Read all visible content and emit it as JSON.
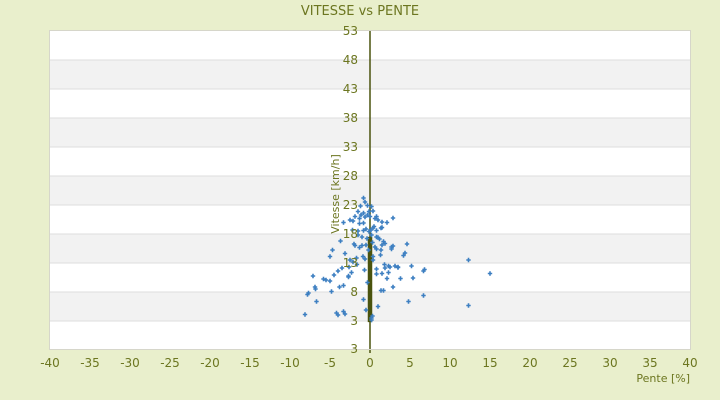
{
  "chart_data": {
    "type": "scatter",
    "title": "VITESSE vs PENTE",
    "xlabel": "Pente [%]",
    "ylabel": "Vitesse [km/h]",
    "xlim": [
      -40,
      40
    ],
    "x_ticks": [
      -40,
      -35,
      -30,
      -25,
      -20,
      -15,
      -10,
      -5,
      0,
      5,
      10,
      15,
      20,
      25,
      30,
      35,
      40
    ],
    "y_ticks": [
      53,
      48,
      43,
      38,
      33,
      28,
      23,
      18,
      13,
      8,
      3
    ],
    "y_bottom_edge_label": "3",
    "grid": "horizontal-alternating-bands",
    "legend": "none",
    "zero_axis_line": {
      "x": 0,
      "color": "#4a530e",
      "dense_overlap_vitesse_range": [
        2.8,
        17.5
      ]
    },
    "series": [
      {
        "name": "vitesse-vs-pente",
        "marker": "plus",
        "color": "#3d7fc1",
        "points": [
          [
            -0.8,
            24.2
          ],
          [
            -0.6,
            23.5
          ],
          [
            -1.2,
            22.8
          ],
          [
            -0.3,
            22.9
          ],
          [
            0.2,
            22.7
          ],
          [
            -1.5,
            21.9
          ],
          [
            -0.8,
            21.6
          ],
          [
            -0.1,
            21.9
          ],
          [
            0.4,
            22.0
          ],
          [
            -1.9,
            21.0
          ],
          [
            -2.5,
            20.4
          ],
          [
            -3.3,
            20.0
          ],
          [
            -1.3,
            20.7
          ],
          [
            -0.6,
            20.9
          ],
          [
            0.0,
            21.0
          ],
          [
            0.6,
            20.7
          ],
          [
            1.0,
            20.4
          ],
          [
            1.5,
            20.1
          ],
          [
            2.9,
            20.8
          ],
          [
            2.1,
            20.0
          ],
          [
            -1.1,
            21.3
          ],
          [
            -0.3,
            21.3
          ],
          [
            0.8,
            21.0
          ],
          [
            -2.1,
            20.2
          ],
          [
            0.4,
            19.0
          ],
          [
            1.5,
            19.1
          ],
          [
            -0.8,
            19.9
          ],
          [
            0.5,
            19.3
          ],
          [
            -1.3,
            19.8
          ],
          [
            -2.2,
            18.7
          ],
          [
            -1.5,
            18.5
          ],
          [
            -0.8,
            18.6
          ],
          [
            -0.1,
            18.4
          ],
          [
            0.8,
            18.6
          ],
          [
            -0.5,
            18.9
          ],
          [
            0.1,
            18.7
          ],
          [
            1.4,
            19.0
          ],
          [
            0.8,
            17.5
          ],
          [
            1.0,
            17.4
          ],
          [
            -1.0,
            17.5
          ],
          [
            0.2,
            17.8
          ],
          [
            1.2,
            17.1
          ],
          [
            1.7,
            16.7
          ],
          [
            1.9,
            16.4
          ],
          [
            -1.5,
            17.8
          ],
          [
            -0.4,
            17.2
          ],
          [
            -0.5,
            16.1
          ],
          [
            0.6,
            15.8
          ],
          [
            1.4,
            15.2
          ],
          [
            -3.7,
            16.8
          ],
          [
            -2.0,
            16.3
          ],
          [
            -1.0,
            16.0
          ],
          [
            -4.7,
            15.2
          ],
          [
            4.6,
            16.3
          ],
          [
            2.7,
            15.8
          ],
          [
            2.7,
            15.4
          ],
          [
            -1.3,
            15.7
          ],
          [
            -0.2,
            15.2
          ],
          [
            0.8,
            15.4
          ],
          [
            1.5,
            16.1
          ],
          [
            2.9,
            15.9
          ],
          [
            -1.9,
            16.0
          ],
          [
            0.3,
            16.5
          ],
          [
            -0.9,
            14.1
          ],
          [
            0.4,
            13.5
          ],
          [
            -3.1,
            14.6
          ],
          [
            -2.5,
            13.5
          ],
          [
            1.3,
            14.4
          ],
          [
            4.4,
            14.7
          ],
          [
            4.2,
            14.3
          ],
          [
            12.3,
            13.5
          ],
          [
            -1.7,
            13.9
          ],
          [
            -0.6,
            13.7
          ],
          [
            -5.0,
            14.1
          ],
          [
            -2.1,
            13.2
          ],
          [
            0.4,
            14.1
          ],
          [
            1.8,
            12.7
          ],
          [
            -1.6,
            12.7
          ],
          [
            -3.5,
            12.1
          ],
          [
            0.8,
            12.0
          ],
          [
            1.9,
            12.1
          ],
          [
            2.5,
            12.3
          ],
          [
            3.1,
            12.5
          ],
          [
            3.5,
            12.3
          ],
          [
            2.3,
            12.5
          ],
          [
            3.5,
            12.2
          ],
          [
            5.2,
            12.5
          ],
          [
            -0.7,
            11.8
          ],
          [
            1.5,
            11.2
          ],
          [
            2.3,
            11.4
          ],
          [
            6.7,
            11.6
          ],
          [
            15.0,
            11.2
          ],
          [
            0.8,
            11.1
          ],
          [
            -4.0,
            11.6
          ],
          [
            -4.5,
            10.9
          ],
          [
            -2.7,
            10.8
          ],
          [
            -2.3,
            11.4
          ],
          [
            -2.6,
            12.3
          ],
          [
            6.8,
            11.9
          ],
          [
            2.1,
            10.3
          ],
          [
            3.8,
            10.3
          ],
          [
            5.4,
            10.4
          ],
          [
            -7.1,
            10.8
          ],
          [
            -5.8,
            10.2
          ],
          [
            -5.0,
            9.9
          ],
          [
            -5.5,
            10.1
          ],
          [
            -2.7,
            10.6
          ],
          [
            -0.3,
            9.6
          ],
          [
            -3.3,
            9.1
          ],
          [
            -6.9,
            8.9
          ],
          [
            -3.8,
            8.9
          ],
          [
            1.7,
            8.3
          ],
          [
            2.9,
            8.9
          ],
          [
            1.4,
            8.3
          ],
          [
            -7.7,
            7.8
          ],
          [
            -7.8,
            7.6
          ],
          [
            -6.8,
            8.5
          ],
          [
            -4.8,
            8.1
          ],
          [
            6.7,
            7.4
          ],
          [
            -0.8,
            6.7
          ],
          [
            -6.7,
            6.4
          ],
          [
            4.8,
            6.4
          ],
          [
            12.3,
            5.7
          ],
          [
            1.0,
            5.5
          ],
          [
            -8.1,
            4.1
          ],
          [
            -4.2,
            4.4
          ],
          [
            -3.3,
            4.6
          ],
          [
            -3.1,
            4.2
          ],
          [
            -4.0,
            4.0
          ],
          [
            0.3,
            3.9
          ],
          [
            -0.5,
            4.9
          ],
          [
            0.2,
            3.5
          ],
          [
            0.2,
            3.2
          ]
        ]
      }
    ]
  },
  "colors": {
    "background": "#e9efcc",
    "plot_background": "#ffffff",
    "band_fill": "#f2f2f2",
    "gridline": "#dedede",
    "plot_border": "#d6d6ca",
    "text_olive": "#6c7620",
    "axis_line": "#4a530e",
    "marker_blue": "#3d7fc1"
  }
}
